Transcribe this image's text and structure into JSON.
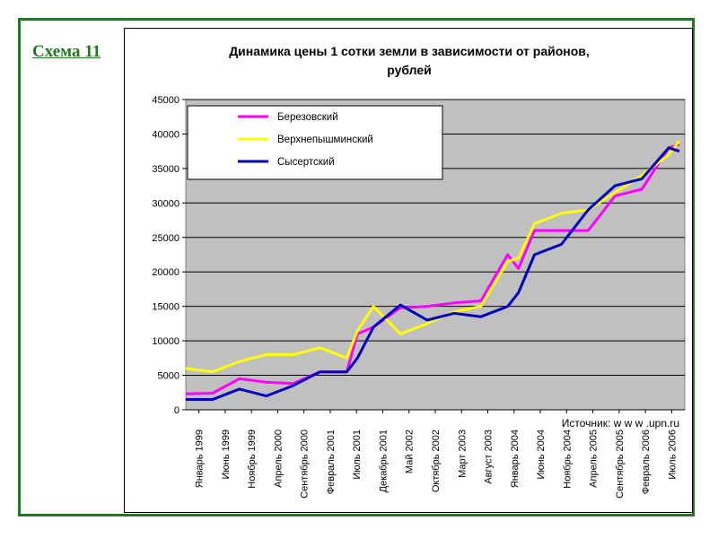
{
  "slide": {
    "label": "Схема 11"
  },
  "chart_data": {
    "type": "line",
    "title": "Динамика цены 1 сотки земли в зависимости от районов, рублей",
    "title_lines": [
      "Динамика цены 1 сотки земли в зависимости от районов,",
      "рублей"
    ],
    "source": "Источник: w w w .upn.ru",
    "ylim": [
      0,
      45000
    ],
    "yticks": [
      0,
      5000,
      10000,
      15000,
      20000,
      25000,
      30000,
      35000,
      40000,
      45000
    ],
    "grid": true,
    "legend_position": "top-left",
    "x_tick_labels": [
      "Январь 1999",
      "Июнь 1999",
      "Ноябрь 1999",
      "Апрель 2000",
      "Сентябрь 2000",
      "Февраль 2001",
      "Июль 2001",
      "Декабрь 2001",
      "Май 2002",
      "Октябрь 2002",
      "Март 2003",
      "Август 2003",
      "Январь 2004",
      "Июнь 2004",
      "Ноябрь 2004",
      "Апрель 2005",
      "Сентябрь 2005",
      "Февраль 2006",
      "Июль 2006"
    ],
    "x": [
      "1999-01",
      "1999-06",
      "1999-11",
      "2000-04",
      "2000-09",
      "2001-02",
      "2001-07",
      "2001-09",
      "2001-12",
      "2002-05",
      "2002-10",
      "2003-03",
      "2003-08",
      "2004-01",
      "2004-03",
      "2004-06",
      "2004-11",
      "2005-04",
      "2005-09",
      "2006-02",
      "2006-07",
      "2006-09"
    ],
    "series": [
      {
        "name": "Березовский",
        "color": "#ff00ff",
        "values": [
          2300,
          2400,
          4500,
          4000,
          3800,
          5500,
          5500,
          11000,
          12000,
          14800,
          15000,
          15500,
          15800,
          22500,
          20500,
          26000,
          26000,
          26000,
          31000,
          32000,
          38000,
          38500
        ]
      },
      {
        "name": "Верхнепышминский",
        "color": "#ffff00",
        "values": [
          6000,
          5500,
          7000,
          8000,
          8000,
          9000,
          7500,
          11500,
          15000,
          11000,
          12500,
          14200,
          15000,
          21500,
          22000,
          27000,
          28500,
          29000,
          31500,
          34000,
          37000,
          39000
        ]
      },
      {
        "name": "Сысертский",
        "color": "#0000c0",
        "values": [
          1500,
          1500,
          3000,
          2000,
          3500,
          5500,
          5500,
          7500,
          12000,
          15200,
          13000,
          14000,
          13500,
          15000,
          17000,
          22500,
          24000,
          29000,
          32500,
          33500,
          38000,
          37500
        ]
      }
    ]
  }
}
